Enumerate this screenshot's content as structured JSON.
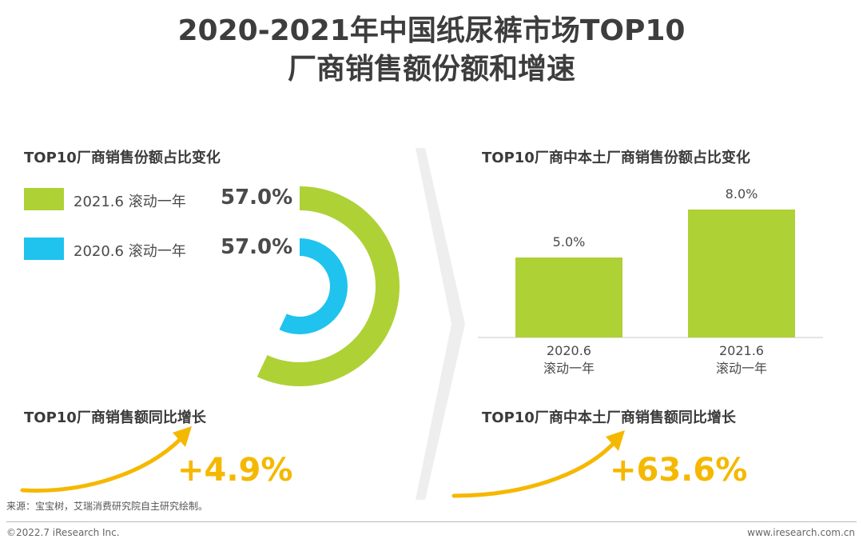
{
  "title": {
    "line1": "2020-2021年中国纸尿裤市场TOP10",
    "line2": "厂商销售额份额和增速"
  },
  "colors": {
    "green": "#aed136",
    "blue": "#1fc3ee",
    "gold": "#f5b800",
    "chevron": "#eeeeee"
  },
  "chart_data": [
    {
      "type": "pie",
      "title": "TOP10厂商销售份额占比变化",
      "series": [
        {
          "name": "2021.6 滚动一年",
          "value": 57.0,
          "label": "57.0%"
        },
        {
          "name": "2020.6 滚动一年",
          "value": 57.0,
          "label": "57.0%"
        }
      ]
    },
    {
      "type": "bar",
      "title": "TOP10厂商中本土厂商销售份额占比变化",
      "categories": [
        "2020.6|滚动一年",
        "2021.6|滚动一年"
      ],
      "values": [
        5.0,
        8.0
      ],
      "value_labels": [
        "5.0%",
        "8.0%"
      ],
      "ylim": [
        0,
        10
      ]
    }
  ],
  "growth": {
    "left": {
      "title": "TOP10厂商销售额同比增长",
      "value": "+4.9%"
    },
    "right": {
      "title": "TOP10厂商中本土厂商销售额同比增长",
      "value": "+63.6%"
    }
  },
  "footer": {
    "source": "来源：宝宝树，艾瑞消费研究院自主研究绘制。",
    "copyright": "©2022.7 iResearch Inc.",
    "website": "www.iresearch.com.cn"
  }
}
